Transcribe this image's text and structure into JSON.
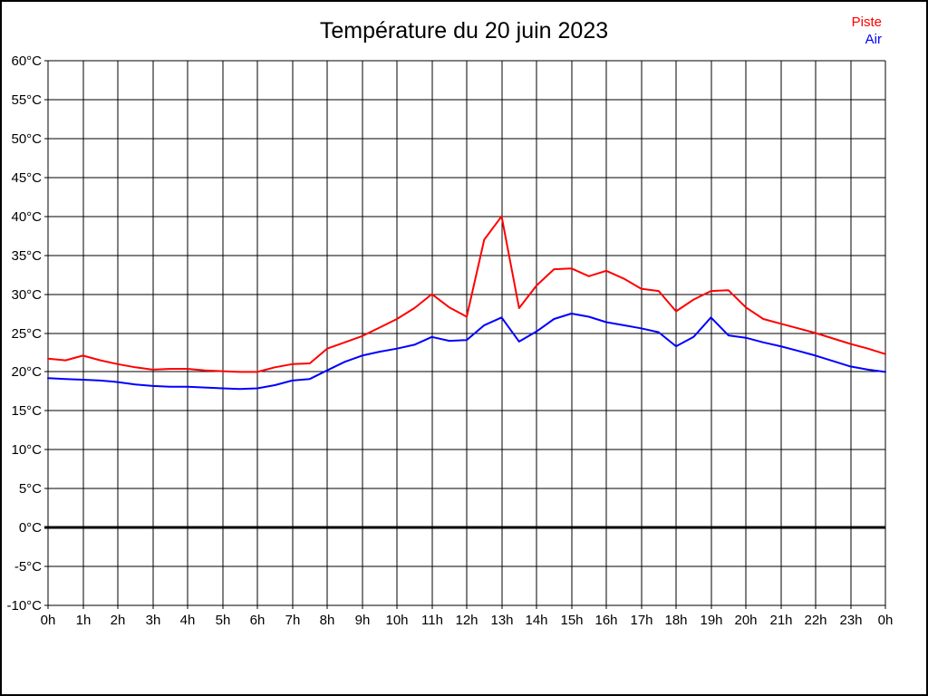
{
  "chart_data": {
    "type": "line",
    "title": "Température du 20 juin 2023",
    "grid": true,
    "zero_line_bold": true,
    "legend_position": "top-right",
    "xlim": [
      0,
      24
    ],
    "ylim": [
      -10,
      60
    ],
    "x": [
      0,
      0.5,
      1,
      1.5,
      2,
      2.5,
      3,
      3.5,
      4,
      4.5,
      5,
      5.5,
      6,
      6.5,
      7,
      7.5,
      8,
      8.5,
      9,
      9.5,
      10,
      10.5,
      11,
      11.5,
      12,
      12.5,
      13,
      13.5,
      14,
      14.5,
      15,
      15.5,
      16,
      16.5,
      17,
      17.5,
      18,
      18.5,
      19,
      19.5,
      20,
      20.5,
      21,
      21.5,
      22,
      22.5,
      23,
      23.5,
      24
    ],
    "series": [
      {
        "name": "Piste",
        "color": "#ff0000",
        "values": [
          21.7,
          21.5,
          22.1,
          21.5,
          21.0,
          20.6,
          20.3,
          20.4,
          20.4,
          20.2,
          20.1,
          20.0,
          20.0,
          20.6,
          21.0,
          21.1,
          23.0,
          23.8,
          24.6,
          25.7,
          26.8,
          28.2,
          30.0,
          28.3,
          27.1,
          37.0,
          40.0,
          28.2,
          31.1,
          33.2,
          33.3,
          32.3,
          33.0,
          32.0,
          30.7,
          30.4,
          27.8,
          29.3,
          30.4,
          30.5,
          28.3,
          26.8,
          26.2,
          25.6,
          25.0,
          24.3,
          23.6,
          23.0,
          22.3
        ]
      },
      {
        "name": "Air",
        "color": "#0000ff",
        "values": [
          19.2,
          19.1,
          19.0,
          18.9,
          18.7,
          18.4,
          18.2,
          18.1,
          18.1,
          18.0,
          17.9,
          17.8,
          17.9,
          18.3,
          18.9,
          19.1,
          20.2,
          21.3,
          22.1,
          22.6,
          23.0,
          23.5,
          24.5,
          24.0,
          24.1,
          26.0,
          27.0,
          23.9,
          25.2,
          26.8,
          27.5,
          27.1,
          26.4,
          26.0,
          25.6,
          25.1,
          23.3,
          24.5,
          27.0,
          24.7,
          24.4,
          23.8,
          23.3,
          22.7,
          22.1,
          21.4,
          20.7,
          20.3,
          20.0
        ]
      }
    ],
    "y_ticks": [
      {
        "v": 60,
        "label": "60°C"
      },
      {
        "v": 55,
        "label": "55°C"
      },
      {
        "v": 50,
        "label": "50°C"
      },
      {
        "v": 45,
        "label": "45°C"
      },
      {
        "v": 40,
        "label": "40°C"
      },
      {
        "v": 35,
        "label": "35°C"
      },
      {
        "v": 30,
        "label": "30°C"
      },
      {
        "v": 25,
        "label": "25°C"
      },
      {
        "v": 20,
        "label": "20°C"
      },
      {
        "v": 15,
        "label": "15°C"
      },
      {
        "v": 10,
        "label": "10°C"
      },
      {
        "v": 5,
        "label": "5°C"
      },
      {
        "v": 0,
        "label": "0°C"
      },
      {
        "v": -5,
        "label": "-5°C"
      },
      {
        "v": -10,
        "label": "-10°C"
      }
    ],
    "x_ticks": [
      {
        "v": 0,
        "label": "0h"
      },
      {
        "v": 1,
        "label": "1h"
      },
      {
        "v": 2,
        "label": "2h"
      },
      {
        "v": 3,
        "label": "3h"
      },
      {
        "v": 4,
        "label": "4h"
      },
      {
        "v": 5,
        "label": "5h"
      },
      {
        "v": 6,
        "label": "6h"
      },
      {
        "v": 7,
        "label": "7h"
      },
      {
        "v": 8,
        "label": "8h"
      },
      {
        "v": 9,
        "label": "9h"
      },
      {
        "v": 10,
        "label": "10h"
      },
      {
        "v": 11,
        "label": "11h"
      },
      {
        "v": 12,
        "label": "12h"
      },
      {
        "v": 13,
        "label": "13h"
      },
      {
        "v": 14,
        "label": "14h"
      },
      {
        "v": 15,
        "label": "15h"
      },
      {
        "v": 16,
        "label": "16h"
      },
      {
        "v": 17,
        "label": "17h"
      },
      {
        "v": 18,
        "label": "18h"
      },
      {
        "v": 19,
        "label": "19h"
      },
      {
        "v": 20,
        "label": "20h"
      },
      {
        "v": 21,
        "label": "21h"
      },
      {
        "v": 22,
        "label": "22h"
      },
      {
        "v": 23,
        "label": "23h"
      },
      {
        "v": 24,
        "label": "0h"
      }
    ]
  }
}
